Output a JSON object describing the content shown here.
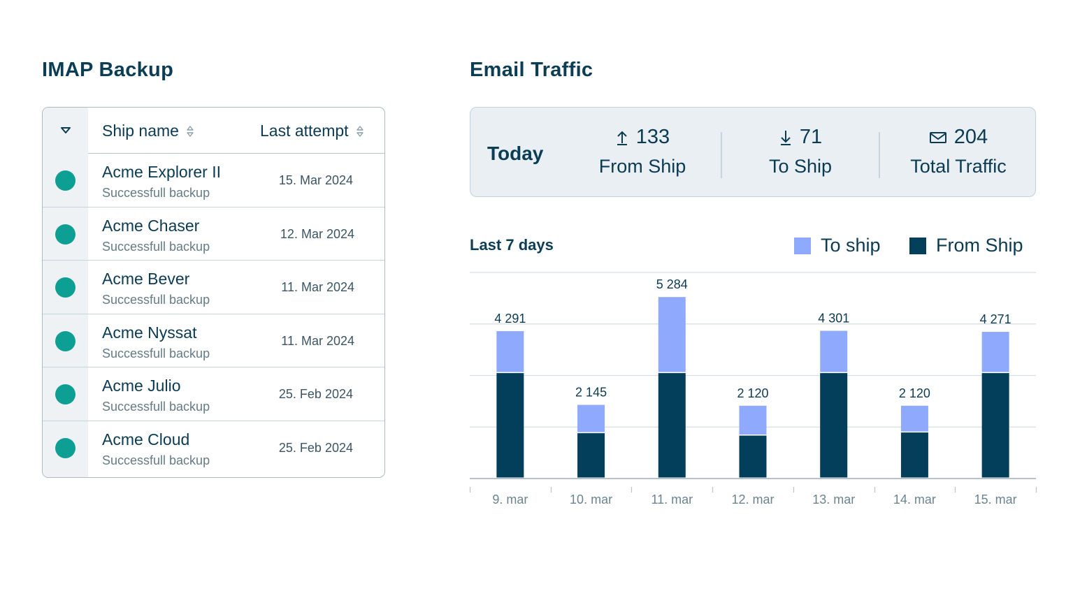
{
  "backup": {
    "title": "IMAP Backup",
    "columns": {
      "ship_name": "Ship name",
      "last_attempt": "Last attempt"
    },
    "rows": [
      {
        "name": "Acme Explorer II",
        "status": "Successfull backup",
        "date": "15. Mar 2024"
      },
      {
        "name": "Acme Chaser",
        "status": "Successfull backup",
        "date": "12. Mar 2024"
      },
      {
        "name": "Acme Bever",
        "status": "Successfull backup",
        "date": "11. Mar 2024"
      },
      {
        "name": "Acme Nyssat",
        "status": "Successfull backup",
        "date": "11. Mar 2024"
      },
      {
        "name": "Acme Julio",
        "status": "Successfull backup",
        "date": "25. Feb 2024"
      },
      {
        "name": "Acme Cloud",
        "status": "Successfull backup",
        "date": "25. Feb 2024"
      }
    ],
    "status_color": "#0d9e94"
  },
  "traffic": {
    "title": "Email Traffic",
    "today": {
      "label": "Today",
      "from_ship": {
        "value": "133",
        "label": "From Ship",
        "icon": "arrow-up-icon"
      },
      "to_ship": {
        "value": "71",
        "label": "To Ship",
        "icon": "arrow-down-icon"
      },
      "total": {
        "value": "204",
        "label": "Total Traffic",
        "icon": "mail-icon"
      }
    },
    "chart_title": "Last 7 days",
    "legend": {
      "to_ship": "To ship",
      "from_ship": "From Ship"
    }
  },
  "chart_data": {
    "type": "bar",
    "stacked": true,
    "title": "Last 7 days",
    "categories": [
      "9. mar",
      "10. mar",
      "11. mar",
      "12. mar",
      "13. mar",
      "14. mar",
      "15. mar"
    ],
    "totals": [
      "4 291",
      "2 145",
      "5 284",
      "2 120",
      "4 301",
      "2 120",
      "4 271"
    ],
    "series": [
      {
        "name": "From Ship",
        "color": "#033f5a",
        "values": [
          3070,
          1320,
          3070,
          1250,
          3070,
          1340,
          3070
        ]
      },
      {
        "name": "To ship",
        "color": "#8faafc",
        "values": [
          1221,
          825,
          2214,
          870,
          1231,
          780,
          1201
        ]
      }
    ],
    "ylim": [
      0,
      6000
    ],
    "grid": true
  }
}
